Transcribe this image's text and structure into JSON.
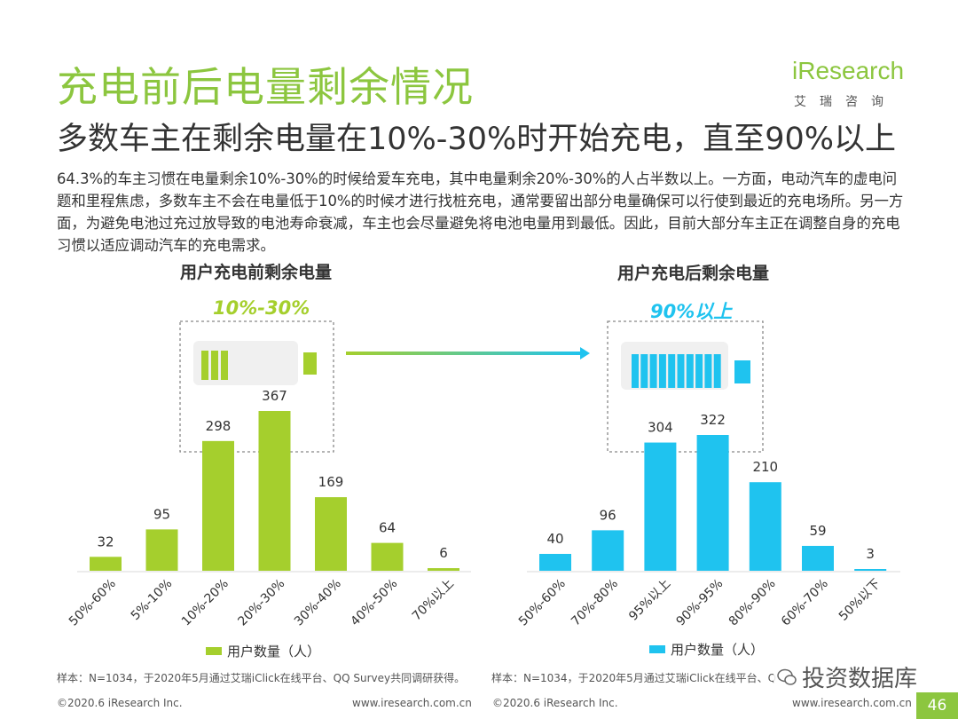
{
  "header": {
    "title": "充电前后电量剩余情况",
    "subtitle": "多数车主在剩余电量在10%-30%时开始充电，直至90%以上"
  },
  "logo": {
    "brand": "iResearch",
    "brand_cn": "艾瑞咨询"
  },
  "description": "64.3%的车主习惯在电量剩余10%-30%的时候给爱车充电，其中电量剩余20%-30%的人占半数以上。一方面，电动汽车的虚电问题和里程焦虑，多数车主不会在电量低于10%的时候才进行找桩充电，通常要留出部分电量确保可以行使到最近的充电场所。另一方面，为避免电池过充过放导致的电池寿命衰减，车主也会尽量避免将电池电量用到最低。因此，目前大部分车主正在调整自身的充电习惯以适应调动汽车的充电需求。",
  "colors": {
    "accent": "#8cc63f",
    "blue": "#1fc3ef",
    "text": "#333333"
  },
  "chart_data": [
    {
      "type": "bar",
      "title": "用户充电前剩余电量",
      "highlight": "10%-30%",
      "categories": [
        "50%-60%",
        "5%-10%",
        "10%-20%",
        "20%-30%",
        "30%-40%",
        "40%-50%",
        "70%以上"
      ],
      "values": [
        32,
        95,
        298,
        367,
        169,
        64,
        6
      ],
      "legend": "用户数量（人）",
      "color": "#a5cf2d",
      "ylim": [
        0,
        380
      ],
      "battery_level": 3,
      "note": "样本：N=1034，于2020年5月通过艾瑞iClick在线平台、QQ Survey共同调研获得。"
    },
    {
      "type": "bar",
      "title": "用户充电后剩余电量",
      "highlight": "90%以上",
      "categories": [
        "50%-60%",
        "70%-80%",
        "95%以上",
        "90%-95%",
        "80%-90%",
        "60%-70%",
        "50%以下"
      ],
      "values": [
        40,
        96,
        304,
        322,
        210,
        59,
        3
      ],
      "legend": "用户数量（人）",
      "color": "#1fc3ef",
      "ylim": [
        0,
        380
      ],
      "battery_level": 10,
      "note": "样本：N=1034，于2020年5月通过艾瑞iClick在线平台、Q"
    }
  ],
  "footer": {
    "left_copyright": "©2020.6 iResearch Inc.",
    "left_url": "www.iresearch.com.cn",
    "right_copyright": "©2020.6 iResearch Inc.",
    "right_url": "www.iresearch.com.cn",
    "page_number": "46",
    "watermark": "投资数据库"
  }
}
